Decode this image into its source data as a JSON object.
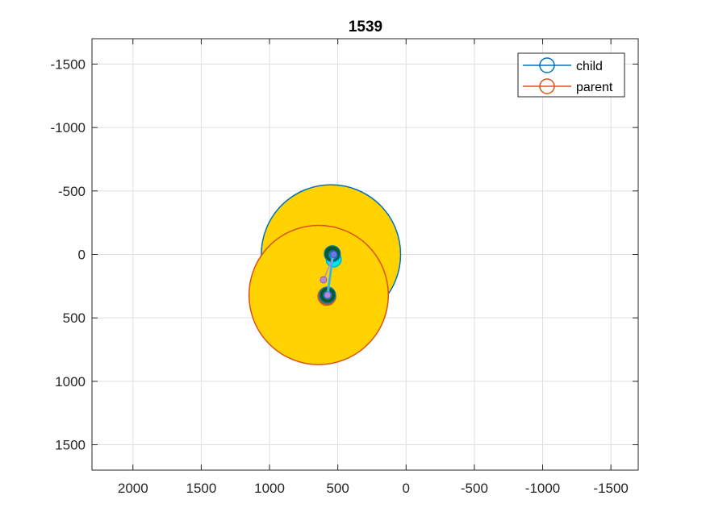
{
  "chart_data": {
    "type": "scatter",
    "title": "1539",
    "xlabel": "",
    "ylabel": "",
    "xlim": [
      -1700,
      2300
    ],
    "ylim": [
      1700,
      -1700
    ],
    "x_reversed": true,
    "y_reversed": true,
    "grid": true,
    "legend_position": "top-right",
    "x_ticks": [
      2000,
      1500,
      1000,
      500,
      0,
      -500,
      -1000,
      -1500
    ],
    "x_tick_labels": [
      "2000",
      "1500",
      "1000",
      "500",
      "0",
      "-500",
      "-1000",
      "-1500"
    ],
    "y_ticks": [
      -1500,
      -1000,
      -500,
      0,
      500,
      1000,
      1500
    ],
    "y_tick_labels": [
      "-1500",
      "-1000",
      "-500",
      "0",
      "500",
      "1000",
      "1500"
    ],
    "legend": [
      {
        "name": "child",
        "color": "#0072BD"
      },
      {
        "name": "parent",
        "color": "#D95319"
      }
    ],
    "circles": [
      {
        "series": "child",
        "x": 550,
        "y": 0,
        "r": 510,
        "fill": "#FFD200",
        "edge": "#0072BD"
      },
      {
        "series": "parent",
        "x": 640,
        "y": 320,
        "r": 510,
        "fill": "#FFD200",
        "edge": "#D95319"
      },
      {
        "series": "child",
        "x": 530,
        "y": 40,
        "r": 55,
        "fill": "#00E5E5",
        "edge": "#00B8B8"
      },
      {
        "series": "child",
        "x": 540,
        "y": -5,
        "r": 58,
        "fill": "#0B5A1C",
        "edge": "#0072BD"
      },
      {
        "series": "child",
        "x": 535,
        "y": 5,
        "r": 32,
        "fill": "#17A589",
        "edge": "#0072BD"
      },
      {
        "series": "child",
        "x": 530,
        "y": 0,
        "r": 14,
        "fill": "#9ACD32",
        "edge": "#0072BD"
      },
      {
        "series": "parent",
        "x": 580,
        "y": 330,
        "r": 65,
        "fill": "#8B6B3A",
        "edge": "#D95319"
      },
      {
        "series": "parent",
        "x": 575,
        "y": 320,
        "r": 58,
        "fill": "#0B5A1C",
        "edge": "#0072BD"
      },
      {
        "series": "parent",
        "x": 575,
        "y": 320,
        "r": 30,
        "fill": "#17A589",
        "edge": "#0072BD"
      },
      {
        "series": "parent",
        "x": 575,
        "y": 320,
        "r": 16,
        "fill": "#B58BD6",
        "edge": "#7E57C2"
      }
    ],
    "links": [
      {
        "x1": 535,
        "y1": 0,
        "x2": 575,
        "y2": 320,
        "color": "#00E5E5",
        "width": 3
      },
      {
        "x1": 535,
        "y1": 0,
        "x2": 575,
        "y2": 320,
        "color": "#7E8CE0",
        "width": 1.5
      },
      {
        "x1": 530,
        "y1": 10,
        "x2": 605,
        "y2": 200,
        "color": "#B58BD6",
        "width": 1.5
      }
    ],
    "points": [
      {
        "x": 530,
        "y": 0,
        "r": 11,
        "fill": "#6A7BE8",
        "edge": "#4455CC"
      },
      {
        "x": 605,
        "y": 200,
        "r": 11,
        "fill": "#B58BD6",
        "edge": "#8A5CB8"
      },
      {
        "x": 575,
        "y": 320,
        "r": 11,
        "fill": "#B58BD6",
        "edge": "#8A5CB8"
      }
    ]
  }
}
